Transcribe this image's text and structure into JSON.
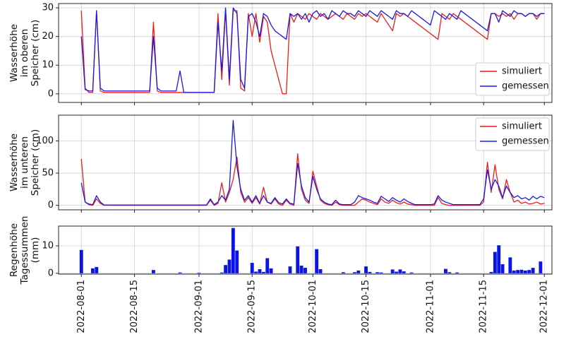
{
  "chart_data": [
    {
      "type": "line",
      "ylabel": [
        "Wasserhöhe",
        "im oberen",
        "Speicher (cm)"
      ],
      "xlim": [
        "2022-07-26",
        "2022-12-03"
      ],
      "ylim": [
        -3,
        31.5
      ],
      "yticks": [
        0,
        10,
        20,
        30
      ],
      "grid": true,
      "legend": "lower right",
      "x": [
        "2022-08-01",
        "2022-08-02",
        "2022-08-03",
        "2022-08-04",
        "2022-08-05",
        "2022-08-06",
        "2022-08-07",
        "2022-08-08",
        "2022-08-09",
        "2022-08-10",
        "2022-08-11",
        "2022-08-12",
        "2022-08-13",
        "2022-08-14",
        "2022-08-15",
        "2022-08-16",
        "2022-08-17",
        "2022-08-18",
        "2022-08-19",
        "2022-08-20",
        "2022-08-21",
        "2022-08-22",
        "2022-08-23",
        "2022-08-24",
        "2022-08-25",
        "2022-08-26",
        "2022-08-27",
        "2022-08-28",
        "2022-08-29",
        "2022-08-30",
        "2022-08-31",
        "2022-09-01",
        "2022-09-02",
        "2022-09-03",
        "2022-09-04",
        "2022-09-05",
        "2022-09-06",
        "2022-09-07",
        "2022-09-08",
        "2022-09-09",
        "2022-09-10",
        "2022-09-11",
        "2022-09-12",
        "2022-09-13",
        "2022-09-14",
        "2022-09-15",
        "2022-09-16",
        "2022-09-17",
        "2022-09-18",
        "2022-09-19",
        "2022-09-20",
        "2022-09-21",
        "2022-09-22",
        "2022-09-23",
        "2022-09-24",
        "2022-09-25",
        "2022-09-26",
        "2022-09-27",
        "2022-09-28",
        "2022-09-29",
        "2022-09-30",
        "2022-10-01",
        "2022-10-02",
        "2022-10-03",
        "2022-10-04",
        "2022-10-05",
        "2022-10-06",
        "2022-10-07",
        "2022-10-08",
        "2022-10-09",
        "2022-10-10",
        "2022-10-11",
        "2022-10-12",
        "2022-10-13",
        "2022-10-14",
        "2022-10-15",
        "2022-10-16",
        "2022-10-17",
        "2022-10-18",
        "2022-10-19",
        "2022-10-20",
        "2022-10-21",
        "2022-10-22",
        "2022-10-23",
        "2022-10-24",
        "2022-10-25",
        "2022-10-26",
        "2022-10-27",
        "2022-10-28",
        "2022-10-29",
        "2022-10-30",
        "2022-10-31",
        "2022-11-01",
        "2022-11-02",
        "2022-11-03",
        "2022-11-04",
        "2022-11-05",
        "2022-11-06",
        "2022-11-07",
        "2022-11-08",
        "2022-11-09",
        "2022-11-10",
        "2022-11-11",
        "2022-11-12",
        "2022-11-13",
        "2022-11-14",
        "2022-11-15",
        "2022-11-16",
        "2022-11-17",
        "2022-11-18",
        "2022-11-19",
        "2022-11-20",
        "2022-11-21",
        "2022-11-22",
        "2022-11-23",
        "2022-11-24",
        "2022-11-25",
        "2022-11-26",
        "2022-11-27",
        "2022-11-28",
        "2022-11-29",
        "2022-11-30",
        "2022-12-01"
      ],
      "series": [
        {
          "name": "simuliert",
          "color": "#ee1c1c",
          "values": [
            29,
            2,
            0.5,
            0.5,
            29,
            1,
            0.5,
            0.5,
            0.5,
            0.5,
            0.5,
            0.5,
            0.5,
            0.5,
            0.5,
            0.5,
            0.5,
            0.5,
            0.5,
            25,
            1,
            0.5,
            0.5,
            0.5,
            0.5,
            0.5,
            0.5,
            0.5,
            0.5,
            0.5,
            0.5,
            0.5,
            0.5,
            0.5,
            0.5,
            0.5,
            28,
            5,
            29,
            3,
            29,
            29,
            2,
            1,
            28,
            20,
            28,
            18,
            27,
            25,
            15,
            10,
            5,
            0,
            0,
            28,
            25,
            28,
            27,
            26,
            28,
            27,
            26,
            28,
            27,
            26,
            27,
            28,
            27,
            26,
            28,
            27,
            26,
            28,
            27,
            28,
            27,
            26,
            25,
            28,
            26,
            24,
            22,
            28,
            27,
            28,
            27,
            26,
            25,
            24,
            23,
            22,
            21,
            20,
            19,
            28,
            27,
            26,
            28,
            27,
            26,
            25,
            24,
            23,
            22,
            21,
            20,
            19,
            28,
            28,
            27,
            28,
            27,
            28,
            26,
            28,
            28,
            27,
            28,
            28,
            26,
            28,
            28
          ]
        },
        {
          "name": "gemessen",
          "color": "#1a1adf",
          "values": [
            20,
            1.5,
            1,
            1,
            29,
            2,
            1,
            1,
            1,
            1,
            1,
            1,
            1,
            1,
            1,
            1,
            1,
            1,
            1,
            20,
            2,
            1,
            1,
            1,
            1,
            1,
            8,
            0.5,
            0.5,
            0.5,
            0.5,
            0.5,
            0.5,
            0.5,
            0.5,
            0.5,
            25,
            8,
            30,
            5,
            30,
            28,
            5,
            2,
            27,
            28,
            25,
            20,
            28,
            27,
            24,
            22,
            21,
            20,
            19,
            28,
            27,
            28,
            26,
            28,
            25,
            28,
            29,
            27,
            28,
            26,
            29,
            28,
            27,
            29,
            28,
            28,
            27,
            29,
            28,
            27,
            29,
            28,
            27,
            29,
            28,
            27,
            26,
            29,
            28,
            28,
            27,
            29,
            28,
            27,
            26,
            25,
            24,
            29,
            28,
            27,
            26,
            28,
            27,
            26,
            29,
            28,
            27,
            26,
            25,
            24,
            23,
            22,
            28,
            28,
            25,
            29,
            28,
            27,
            29,
            28,
            28,
            27,
            28,
            28,
            27,
            28,
            28
          ]
        }
      ]
    },
    {
      "type": "line",
      "ylabel": [
        "Wasserhöhe",
        "im unteren",
        "Speicher (cm)"
      ],
      "xlim": [
        "2022-07-26",
        "2022-12-03"
      ],
      "ylim": [
        -7,
        140
      ],
      "yticks": [
        0,
        50,
        100
      ],
      "grid": true,
      "legend": "upper right",
      "x": [
        "2022-08-01",
        "2022-08-02",
        "2022-08-03",
        "2022-08-04",
        "2022-08-05",
        "2022-08-06",
        "2022-08-07",
        "2022-08-08",
        "2022-08-09",
        "2022-08-10",
        "2022-08-11",
        "2022-08-12",
        "2022-08-13",
        "2022-08-14",
        "2022-08-15",
        "2022-08-16",
        "2022-08-17",
        "2022-08-18",
        "2022-08-19",
        "2022-08-20",
        "2022-08-21",
        "2022-08-22",
        "2022-08-23",
        "2022-08-24",
        "2022-08-25",
        "2022-08-26",
        "2022-08-27",
        "2022-08-28",
        "2022-08-29",
        "2022-08-30",
        "2022-08-31",
        "2022-09-01",
        "2022-09-02",
        "2022-09-03",
        "2022-09-04",
        "2022-09-05",
        "2022-09-06",
        "2022-09-07",
        "2022-09-08",
        "2022-09-09",
        "2022-09-10",
        "2022-09-11",
        "2022-09-12",
        "2022-09-13",
        "2022-09-14",
        "2022-09-15",
        "2022-09-16",
        "2022-09-17",
        "2022-09-18",
        "2022-09-19",
        "2022-09-20",
        "2022-09-21",
        "2022-09-22",
        "2022-09-23",
        "2022-09-24",
        "2022-09-25",
        "2022-09-26",
        "2022-09-27",
        "2022-09-28",
        "2022-09-29",
        "2022-09-30",
        "2022-10-01",
        "2022-10-02",
        "2022-10-03",
        "2022-10-04",
        "2022-10-05",
        "2022-10-06",
        "2022-10-07",
        "2022-10-08",
        "2022-10-09",
        "2022-10-10",
        "2022-10-11",
        "2022-10-12",
        "2022-10-13",
        "2022-10-14",
        "2022-10-15",
        "2022-10-16",
        "2022-10-17",
        "2022-10-18",
        "2022-10-19",
        "2022-10-20",
        "2022-10-21",
        "2022-10-22",
        "2022-10-23",
        "2022-10-24",
        "2022-10-25",
        "2022-10-26",
        "2022-10-27",
        "2022-10-28",
        "2022-10-29",
        "2022-10-30",
        "2022-10-31",
        "2022-11-01",
        "2022-11-02",
        "2022-11-03",
        "2022-11-04",
        "2022-11-05",
        "2022-11-06",
        "2022-11-07",
        "2022-11-08",
        "2022-11-09",
        "2022-11-10",
        "2022-11-11",
        "2022-11-12",
        "2022-11-13",
        "2022-11-14",
        "2022-11-15",
        "2022-11-16",
        "2022-11-17",
        "2022-11-18",
        "2022-11-19",
        "2022-11-20",
        "2022-11-21",
        "2022-11-22",
        "2022-11-23",
        "2022-11-24",
        "2022-11-25",
        "2022-11-26",
        "2022-11-27",
        "2022-11-28",
        "2022-11-29",
        "2022-11-30",
        "2022-12-01"
      ],
      "series": [
        {
          "name": "simuliert",
          "color": "#ee1c1c",
          "values": [
            72,
            5,
            1,
            0,
            10,
            3,
            0,
            0,
            0,
            0,
            0,
            0,
            0,
            0,
            0,
            0,
            0,
            0,
            0,
            0,
            0,
            0,
            0,
            0,
            0,
            0,
            0,
            0,
            0,
            0,
            0,
            0,
            0,
            0,
            8,
            0,
            3,
            35,
            5,
            20,
            40,
            75,
            20,
            5,
            12,
            3,
            12,
            2,
            28,
            5,
            2,
            10,
            2,
            0,
            8,
            2,
            0,
            80,
            25,
            8,
            3,
            53,
            30,
            8,
            3,
            1,
            0,
            5,
            1,
            0,
            0,
            0,
            0,
            5,
            10,
            8,
            5,
            3,
            1,
            10,
            5,
            3,
            8,
            4,
            2,
            5,
            2,
            1,
            0,
            0,
            0,
            0,
            0,
            0,
            12,
            3,
            1,
            0,
            0,
            0,
            0,
            0,
            0,
            0,
            0,
            0,
            5,
            67,
            20,
            63,
            25,
            10,
            40,
            20,
            5,
            8,
            3,
            5,
            2,
            3,
            5,
            2,
            3
          ]
        },
        {
          "name": "gemessen",
          "color": "#1a1adf",
          "values": [
            35,
            5,
            2,
            1,
            15,
            5,
            0.5,
            0.5,
            0.5,
            0.5,
            0.5,
            0.5,
            0.5,
            0.5,
            0.5,
            0.5,
            0.5,
            0.5,
            0.5,
            0.5,
            0.5,
            0.5,
            0.5,
            0.5,
            0.5,
            0.5,
            0.5,
            0.5,
            0.5,
            0.5,
            0.5,
            0.5,
            0.5,
            0.5,
            10,
            1,
            5,
            15,
            8,
            25,
            132,
            60,
            25,
            8,
            15,
            5,
            15,
            3,
            15,
            5,
            3,
            12,
            4,
            2,
            10,
            3,
            2,
            65,
            30,
            12,
            5,
            45,
            25,
            10,
            5,
            2,
            1,
            8,
            2,
            1,
            1,
            1,
            5,
            15,
            12,
            10,
            8,
            5,
            3,
            14,
            10,
            6,
            12,
            8,
            5,
            10,
            6,
            3,
            1,
            1,
            1,
            1,
            1,
            2,
            15,
            8,
            5,
            3,
            1,
            1,
            1,
            1,
            1,
            1,
            1,
            1,
            10,
            55,
            25,
            40,
            30,
            12,
            30,
            20,
            12,
            15,
            10,
            12,
            8,
            14,
            10,
            14,
            12
          ]
        }
      ]
    },
    {
      "type": "bar",
      "ylabel": [
        "Regenhöhe",
        "Tagessummen",
        "(mm)"
      ],
      "color": "#0a14e6",
      "xlim": [
        "2022-07-26",
        "2022-12-03"
      ],
      "ylim": [
        -0.3,
        17.2
      ],
      "yticks": [
        0,
        10
      ],
      "grid": true,
      "xticks": [
        "2022-08-01",
        "2022-08-15",
        "2022-09-01",
        "2022-09-15",
        "2022-10-01",
        "2022-10-15",
        "2022-11-01",
        "2022-11-15",
        "2022-12-01"
      ],
      "x": [
        "2022-08-01",
        "2022-08-04",
        "2022-08-05",
        "2022-08-20",
        "2022-08-27",
        "2022-09-01",
        "2022-09-07",
        "2022-09-08",
        "2022-09-09",
        "2022-09-10",
        "2022-09-11",
        "2022-09-15",
        "2022-09-16",
        "2022-09-17",
        "2022-09-18",
        "2022-09-19",
        "2022-09-20",
        "2022-09-25",
        "2022-09-27",
        "2022-09-28",
        "2022-09-29",
        "2022-10-02",
        "2022-10-03",
        "2022-10-09",
        "2022-10-12",
        "2022-10-13",
        "2022-10-15",
        "2022-10-16",
        "2022-10-18",
        "2022-10-19",
        "2022-10-22",
        "2022-10-23",
        "2022-10-24",
        "2022-10-25",
        "2022-10-27",
        "2022-11-05",
        "2022-11-06",
        "2022-11-08",
        "2022-11-17",
        "2022-11-18",
        "2022-11-19",
        "2022-11-20",
        "2022-11-22",
        "2022-11-23",
        "2022-11-24",
        "2022-11-25",
        "2022-11-26",
        "2022-11-27",
        "2022-11-28",
        "2022-11-30"
      ],
      "values": [
        8.5,
        1.8,
        2.3,
        1.2,
        0.3,
        0.2,
        0.3,
        3,
        5,
        16.5,
        8.3,
        3.8,
        0.6,
        1.5,
        0.5,
        5.5,
        1.8,
        2.5,
        9.8,
        2.8,
        2,
        8.8,
        1.5,
        0.4,
        0.4,
        1,
        2.5,
        0.5,
        0.4,
        0.3,
        1.4,
        0.6,
        1.4,
        0.7,
        0.3,
        1.6,
        0.4,
        0.3,
        0.5,
        7.8,
        10.2,
        3.3,
        5.8,
        1,
        1.2,
        1.3,
        1,
        1.2,
        2,
        4.3
      ]
    }
  ]
}
